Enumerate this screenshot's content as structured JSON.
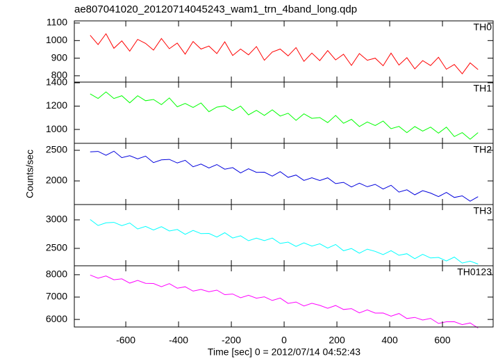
{
  "title": "ae807041020_20120714045243_wam1_trn_4band_long.qdp",
  "ylabel": "Counts/sec",
  "xlabel": "Time [sec] 0 = 2012/07/14 04:52:43",
  "chart_data": [
    {
      "type": "line",
      "label": "TH0",
      "color": "#ff0000",
      "x": [
        -735,
        -705,
        -675,
        -645,
        -615,
        -585,
        -555,
        -525,
        -495,
        -465,
        -435,
        -405,
        -375,
        -345,
        -315,
        -285,
        -255,
        -225,
        -195,
        -165,
        -135,
        -105,
        -75,
        -45,
        -15,
        15,
        45,
        75,
        105,
        135,
        165,
        195,
        225,
        255,
        285,
        315,
        345,
        375,
        405,
        435,
        465,
        495,
        525,
        555,
        585,
        615,
        645,
        675,
        705,
        735
      ],
      "values": [
        1030,
        977,
        1039,
        956,
        998,
        940,
        1007,
        984,
        946,
        1012,
        954,
        986,
        923,
        995,
        952,
        969,
        926,
        993,
        915,
        952,
        919,
        966,
        888,
        935,
        952,
        913,
        960,
        882,
        929,
        886,
        943,
        890,
        922,
        859,
        926,
        888,
        900,
        857,
        929,
        861,
        903,
        839,
        886,
        858,
        905,
        837,
        864,
        811,
        873,
        835
      ],
      "xlim": [
        -795,
        792
      ],
      "ylim": [
        764,
        1112
      ],
      "xticks": [
        -600,
        -400,
        -200,
        0,
        200,
        400,
        600
      ],
      "yticks": [
        800,
        900,
        1000,
        1100
      ]
    },
    {
      "type": "line",
      "label": "TH1",
      "color": "#00ff00",
      "x": [
        -735,
        -705,
        -675,
        -645,
        -615,
        -585,
        -555,
        -525,
        -495,
        -465,
        -435,
        -405,
        -375,
        -345,
        -315,
        -285,
        -255,
        -225,
        -195,
        -165,
        -135,
        -105,
        -75,
        -45,
        -15,
        15,
        45,
        75,
        105,
        135,
        165,
        195,
        225,
        255,
        285,
        315,
        345,
        375,
        405,
        435,
        465,
        495,
        525,
        555,
        585,
        615,
        645,
        675,
        705,
        735
      ],
      "values": [
        1305,
        1266,
        1322,
        1265,
        1289,
        1228,
        1289,
        1246,
        1257,
        1213,
        1270,
        1194,
        1223,
        1189,
        1227,
        1152,
        1191,
        1202,
        1162,
        1200,
        1125,
        1164,
        1120,
        1168,
        1115,
        1139,
        1078,
        1134,
        1095,
        1102,
        1059,
        1120,
        1053,
        1087,
        1025,
        1064,
        1034,
        1072,
        1006,
        1026,
        973,
        1025,
        986,
        1020,
        968,
        1020,
        939,
        973,
        916,
        973
      ],
      "xlim": [
        -795,
        792
      ],
      "ylim": [
        881,
        1406
      ],
      "xticks": [
        -600,
        -400,
        -200,
        0,
        200,
        400,
        600
      ],
      "yticks": [
        1000,
        1200,
        1400
      ]
    },
    {
      "type": "line",
      "label": "TH2",
      "color": "#0000dd",
      "x": [
        -735,
        -705,
        -675,
        -645,
        -615,
        -585,
        -555,
        -525,
        -495,
        -465,
        -435,
        -405,
        -375,
        -345,
        -315,
        -285,
        -255,
        -225,
        -195,
        -165,
        -135,
        -105,
        -75,
        -45,
        -15,
        15,
        45,
        75,
        105,
        135,
        165,
        195,
        225,
        255,
        285,
        315,
        345,
        375,
        405,
        435,
        465,
        495,
        525,
        555,
        585,
        615,
        645,
        675,
        705,
        735
      ],
      "values": [
        2474,
        2482,
        2418,
        2486,
        2380,
        2412,
        2360,
        2405,
        2299,
        2343,
        2351,
        2293,
        2337,
        2231,
        2275,
        2211,
        2267,
        2191,
        2217,
        2130,
        2198,
        2140,
        2142,
        2078,
        2152,
        2058,
        2096,
        2008,
        2052,
        2006,
        2050,
        1956,
        1977,
        1901,
        1963,
        1905,
        1943,
        1867,
        1929,
        1817,
        1855,
        1773,
        1841,
        1801,
        1744,
        1812,
        1730,
        1756,
        1668,
        1742
      ],
      "xlim": [
        -795,
        792
      ],
      "ylim": [
        1614,
        2614
      ],
      "xticks": [
        -600,
        -400,
        -200,
        0,
        200,
        400,
        600
      ],
      "yticks": [
        2000,
        2500
      ]
    },
    {
      "type": "line",
      "label": "TH3",
      "color": "#00ffff",
      "x": [
        -735,
        -705,
        -675,
        -645,
        -615,
        -585,
        -555,
        -525,
        -495,
        -465,
        -435,
        -405,
        -375,
        -345,
        -315,
        -285,
        -255,
        -225,
        -195,
        -165,
        -135,
        -105,
        -75,
        -45,
        -15,
        15,
        45,
        75,
        105,
        135,
        165,
        195,
        225,
        255,
        285,
        315,
        345,
        375,
        405,
        435,
        465,
        495,
        525,
        555,
        585,
        615,
        645,
        675,
        705,
        735
      ],
      "values": [
        3006,
        2901,
        2947,
        2956,
        2899,
        2945,
        2840,
        2885,
        2822,
        2880,
        2805,
        2832,
        2746,
        2815,
        2758,
        2762,
        2699,
        2774,
        2681,
        2721,
        2634,
        2679,
        2635,
        2680,
        2587,
        2609,
        2534,
        2597,
        2540,
        2580,
        2505,
        2568,
        2458,
        2497,
        2416,
        2486,
        2447,
        2390,
        2459,
        2379,
        2406,
        2319,
        2395,
        2332,
        2341,
        2279,
        2348,
        2243,
        2276,
        2226
      ],
      "xlim": [
        -795,
        792
      ],
      "ylim": [
        2195,
        3268
      ],
      "xticks": [
        -600,
        -400,
        -200,
        0,
        200,
        400,
        600
      ],
      "yticks": [
        2500,
        3000
      ]
    },
    {
      "type": "line",
      "label": "TH0123",
      "color": "#ff00ff",
      "x": [
        -735,
        -705,
        -675,
        -645,
        -615,
        -585,
        -555,
        -525,
        -495,
        -465,
        -435,
        -405,
        -375,
        -345,
        -315,
        -285,
        -255,
        -225,
        -195,
        -165,
        -135,
        -105,
        -75,
        -45,
        -15,
        15,
        45,
        75,
        105,
        135,
        165,
        195,
        225,
        255,
        285,
        315,
        345,
        375,
        405,
        435,
        465,
        495,
        525,
        555,
        585,
        615,
        645,
        675,
        705,
        735
      ],
      "values": [
        7986,
        7844,
        7942,
        7776,
        7814,
        7624,
        7747,
        7617,
        7607,
        7465,
        7599,
        7397,
        7459,
        7269,
        7343,
        7237,
        7311,
        7109,
        7136,
        6970,
        7080,
        6950,
        7012,
        6846,
        6956,
        6718,
        6780,
        6602,
        6724,
        6630,
        6500,
        6623,
        6445,
        6483,
        6293,
        6427,
        6285,
        6287,
        6145,
        6267,
        6041,
        6091,
        5973,
        6047,
        5821,
        5895,
        5898,
        5768,
        5842,
        5616
      ],
      "xlim": [
        -795,
        792
      ],
      "ylim": [
        5662,
        8400
      ],
      "xticks": [
        -600,
        -400,
        -200,
        0,
        200,
        400,
        600
      ],
      "yticks": [
        6000,
        7000,
        8000
      ]
    }
  ]
}
